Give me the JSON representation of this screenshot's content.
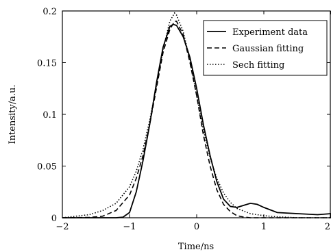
{
  "chart_data": {
    "type": "line",
    "title": "",
    "xlabel": "Time/ns",
    "ylabel": "Intensity/a.u.",
    "xlim": [
      -2,
      2
    ],
    "ylim": [
      0,
      0.2
    ],
    "x_ticks": [
      -2,
      -1,
      0,
      1,
      2
    ],
    "x_tick_labels": [
      "−2",
      "−1",
      "0",
      "1",
      "2"
    ],
    "y_ticks": [
      0,
      0.05,
      0.1,
      0.15,
      0.2
    ],
    "y_tick_labels": [
      "0",
      "0.05",
      "0.1",
      "0.15",
      "0.2"
    ],
    "grid": false,
    "legend_position": "top-right",
    "series": [
      {
        "name": "Experiment data",
        "style": "solid",
        "color": "#000000",
        "x": [
          -2.0,
          -1.5,
          -1.2,
          -1.1,
          -1.0,
          -0.9,
          -0.8,
          -0.7,
          -0.6,
          -0.5,
          -0.4,
          -0.35,
          -0.3,
          -0.2,
          -0.1,
          0.0,
          0.1,
          0.2,
          0.3,
          0.4,
          0.5,
          0.6,
          0.7,
          0.8,
          0.9,
          1.0,
          1.2,
          1.5,
          1.8,
          2.0
        ],
        "values": [
          0.0,
          0.0,
          0.0,
          0.0005,
          0.005,
          0.025,
          0.055,
          0.09,
          0.13,
          0.165,
          0.185,
          0.187,
          0.186,
          0.175,
          0.155,
          0.125,
          0.09,
          0.06,
          0.035,
          0.018,
          0.011,
          0.01,
          0.012,
          0.014,
          0.013,
          0.01,
          0.005,
          0.004,
          0.003,
          0.004
        ]
      },
      {
        "name": "Gaussian fitting",
        "style": "dashed",
        "color": "#000000",
        "x": [
          -2.0,
          -1.6,
          -1.4,
          -1.2,
          -1.0,
          -0.9,
          -0.8,
          -0.7,
          -0.6,
          -0.5,
          -0.4,
          -0.33,
          -0.3,
          -0.2,
          -0.1,
          0.0,
          0.1,
          0.2,
          0.3,
          0.4,
          0.5,
          0.6,
          0.7,
          0.8,
          1.0,
          1.5,
          2.0
        ],
        "values": [
          0.0,
          0.0003,
          0.0015,
          0.007,
          0.022,
          0.038,
          0.06,
          0.09,
          0.125,
          0.16,
          0.182,
          0.19,
          0.19,
          0.177,
          0.15,
          0.118,
          0.08,
          0.05,
          0.027,
          0.013,
          0.006,
          0.002,
          0.0007,
          0.0,
          0.0,
          0.0,
          0.0
        ]
      },
      {
        "name": "Sech fitting",
        "style": "dotted",
        "color": "#000000",
        "x": [
          -2.0,
          -1.6,
          -1.4,
          -1.2,
          -1.0,
          -0.9,
          -0.8,
          -0.7,
          -0.6,
          -0.5,
          -0.4,
          -0.33,
          -0.3,
          -0.2,
          -0.1,
          0.0,
          0.1,
          0.2,
          0.3,
          0.4,
          0.5,
          0.6,
          0.8,
          1.0,
          1.2,
          1.5,
          2.0
        ],
        "values": [
          0.0,
          0.003,
          0.007,
          0.014,
          0.03,
          0.045,
          0.066,
          0.094,
          0.127,
          0.163,
          0.19,
          0.198,
          0.196,
          0.18,
          0.152,
          0.118,
          0.085,
          0.058,
          0.038,
          0.024,
          0.015,
          0.009,
          0.004,
          0.002,
          0.001,
          0.0,
          0.0
        ]
      }
    ]
  }
}
